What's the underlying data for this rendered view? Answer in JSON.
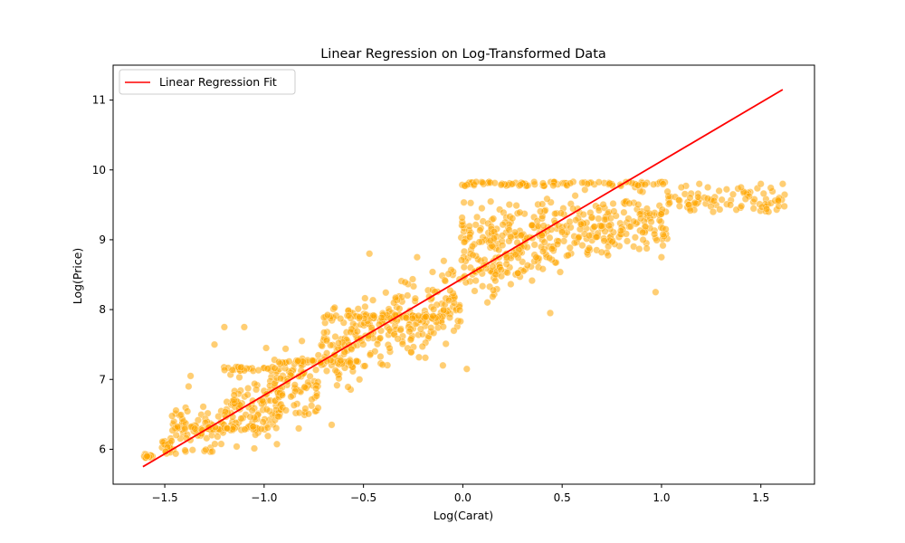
{
  "chart_data": {
    "type": "scatter",
    "title": "Linear Regression on Log-Transformed Data",
    "xlabel": "Log(Carat)",
    "ylabel": "Log(Price)",
    "xlim": [
      -1.76,
      1.77
    ],
    "ylim": [
      5.5,
      11.5
    ],
    "xticks": [
      -1.5,
      -1.0,
      -0.5,
      0.0,
      0.5,
      1.0,
      1.5
    ],
    "xtick_labels": [
      "−1.5",
      "−1.0",
      "−0.5",
      "0.0",
      "0.5",
      "1.0",
      "1.5"
    ],
    "yticks": [
      6,
      7,
      8,
      9,
      10,
      11
    ],
    "ytick_labels": [
      "6",
      "7",
      "8",
      "9",
      "10",
      "11"
    ],
    "grid": false,
    "legend_position": "top-left",
    "series": [
      {
        "kind": "scatter",
        "color": "#FFA500",
        "alpha": 0.55,
        "clusters": [
          {
            "xmin": -1.61,
            "xmax": -1.56,
            "ymin": 5.85,
            "ymax": 5.95
          },
          {
            "xmin": -1.52,
            "xmax": -1.45,
            "ymin": 5.85,
            "ymax": 6.2
          },
          {
            "xmin": -1.47,
            "xmax": -1.21,
            "ymin": 5.82,
            "ymax": 6.75
          },
          {
            "xmin": -1.21,
            "xmax": -0.91,
            "ymin": 5.9,
            "ymax": 7.3
          },
          {
            "xmin": -0.95,
            "xmax": -0.72,
            "ymin": 6.2,
            "ymax": 7.6
          },
          {
            "xmin": -0.72,
            "xmax": -0.52,
            "ymin": 6.7,
            "ymax": 8.3
          },
          {
            "xmin": -0.52,
            "xmax": -0.36,
            "ymin": 7.0,
            "ymax": 8.4
          },
          {
            "xmin": -0.36,
            "xmax": -0.17,
            "ymin": 7.1,
            "ymax": 8.6
          },
          {
            "xmin": -0.17,
            "xmax": -0.01,
            "ymin": 7.3,
            "ymax": 8.8
          },
          {
            "xmin": -0.01,
            "xmax": 0.18,
            "ymin": 7.7,
            "ymax": 9.8
          },
          {
            "xmin": 0.18,
            "xmax": 0.39,
            "ymin": 8.0,
            "ymax": 9.8
          },
          {
            "xmin": 0.39,
            "xmax": 0.53,
            "ymin": 8.3,
            "ymax": 9.8
          },
          {
            "xmin": 0.53,
            "xmax": 0.69,
            "ymin": 8.5,
            "ymax": 9.8
          },
          {
            "xmin": 0.69,
            "xmax": 1.03,
            "ymin": 8.6,
            "ymax": 9.85
          },
          {
            "xmin": 1.03,
            "xmax": 1.62,
            "ymin": 9.3,
            "ymax": 9.85
          }
        ],
        "bands": [
          {
            "xmin": -1.47,
            "xmax": -1.21,
            "y": 6.3
          },
          {
            "xmin": -1.21,
            "xmax": -0.93,
            "y": 6.3
          },
          {
            "xmin": -1.21,
            "xmax": -0.93,
            "y": 7.15
          },
          {
            "xmin": -0.93,
            "xmax": -0.52,
            "y": 7.25
          },
          {
            "xmin": -0.72,
            "xmax": -0.1,
            "y": 7.9
          },
          {
            "xmin": -0.01,
            "xmax": 1.03,
            "y": 9.8
          }
        ],
        "outliers": [
          [
            -1.59,
            5.9
          ],
          [
            -1.38,
            6.9
          ],
          [
            -1.37,
            7.05
          ],
          [
            -1.25,
            7.5
          ],
          [
            -1.2,
            7.75
          ],
          [
            -1.1,
            7.75
          ],
          [
            -0.99,
            7.45
          ],
          [
            -0.81,
            7.55
          ],
          [
            -0.66,
            6.35
          ],
          [
            -0.52,
            7.0
          ],
          [
            -0.47,
            8.8
          ],
          [
            -0.23,
            8.75
          ],
          [
            -0.1,
            7.2
          ],
          [
            0.02,
            7.15
          ],
          [
            0.44,
            7.95
          ],
          [
            0.97,
            8.25
          ],
          [
            1.0,
            8.75
          ],
          [
            1.1,
            9.75
          ],
          [
            1.19,
            9.8
          ],
          [
            1.26,
            9.4
          ],
          [
            1.29,
            9.7
          ],
          [
            1.36,
            9.65
          ],
          [
            1.4,
            9.75
          ],
          [
            1.5,
            9.8
          ],
          [
            1.61,
            9.8
          ]
        ]
      },
      {
        "kind": "line",
        "name": "Linear Regression Fit",
        "color": "#FF0000",
        "points": [
          [
            -1.61,
            5.75
          ],
          [
            1.61,
            11.15
          ]
        ]
      }
    ]
  }
}
